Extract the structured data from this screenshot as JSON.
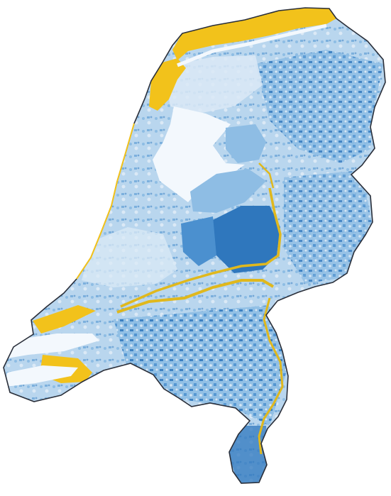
{
  "map": {
    "subject": "Netherlands",
    "colors": {
      "background": "#ffffff",
      "outline": "#2a2f3a",
      "very_light_blue": "#dbe9f6",
      "light_blue": "#b9d6ee",
      "mid_blue": "#8ebde4",
      "deep_blue": "#4b90cf",
      "dark_blue": "#2f77bd",
      "yellow_coast_dunes": "#f2c21b",
      "yellow_rivers": "#e0b81d",
      "water_white": "#f3f8fd"
    },
    "regions": [
      {
        "name": "north-coast-dunes",
        "color_key": "yellow_coast_dunes"
      },
      {
        "name": "north-west-dunes",
        "color_key": "yellow_coast_dunes"
      },
      {
        "name": "river-lines",
        "color_key": "yellow_rivers"
      },
      {
        "name": "south-west-delta",
        "color_key": "yellow_coast_dunes"
      },
      {
        "name": "interior-polders",
        "color_key": "mid_blue"
      },
      {
        "name": "south-east-uplands",
        "color_key": "deep_blue"
      }
    ]
  }
}
